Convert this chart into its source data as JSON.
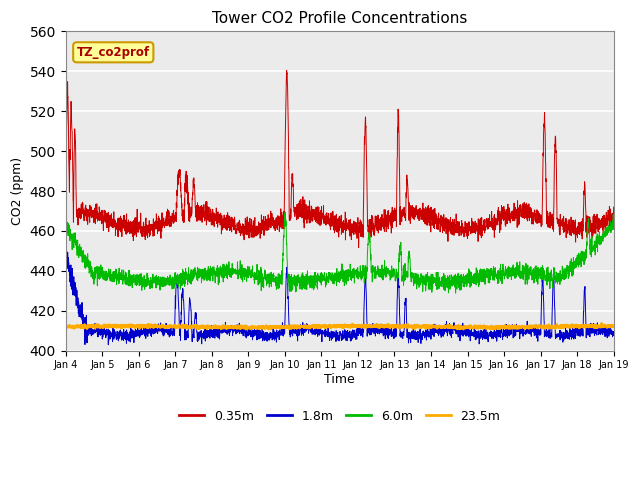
{
  "title": "Tower CO2 Profile Concentrations",
  "xlabel": "Time",
  "ylabel": "CO2 (ppm)",
  "ylim": [
    400,
    560
  ],
  "yticks": [
    400,
    420,
    440,
    460,
    480,
    500,
    520,
    540,
    560
  ],
  "colors": {
    "0.35m": "#cc0000",
    "1.8m": "#0000cc",
    "6.0m": "#00bb00",
    "23.5m": "#ffaa00"
  },
  "legend_labels": [
    "0.35m",
    "1.8m",
    "6.0m",
    "23.5m"
  ],
  "annotation_text": "TZ_co2prof",
  "annotation_bg": "#ffff99",
  "annotation_border": "#cc9900",
  "bg_color": "#ebebeb",
  "n_points": 3000,
  "days": 15,
  "xtick_labels": [
    "Jan 4",
    "Jan 5",
    "Jan 6",
    "Jan 7",
    "Jan 8",
    "Jan 9",
    "Jan 10",
    "Jan 11",
    "Jan 12",
    "Jan 13",
    "Jan 14",
    "Jan 15",
    "Jan 16",
    "Jan 17",
    "Jan 18",
    "Jan 19"
  ],
  "linewidth": 0.7
}
